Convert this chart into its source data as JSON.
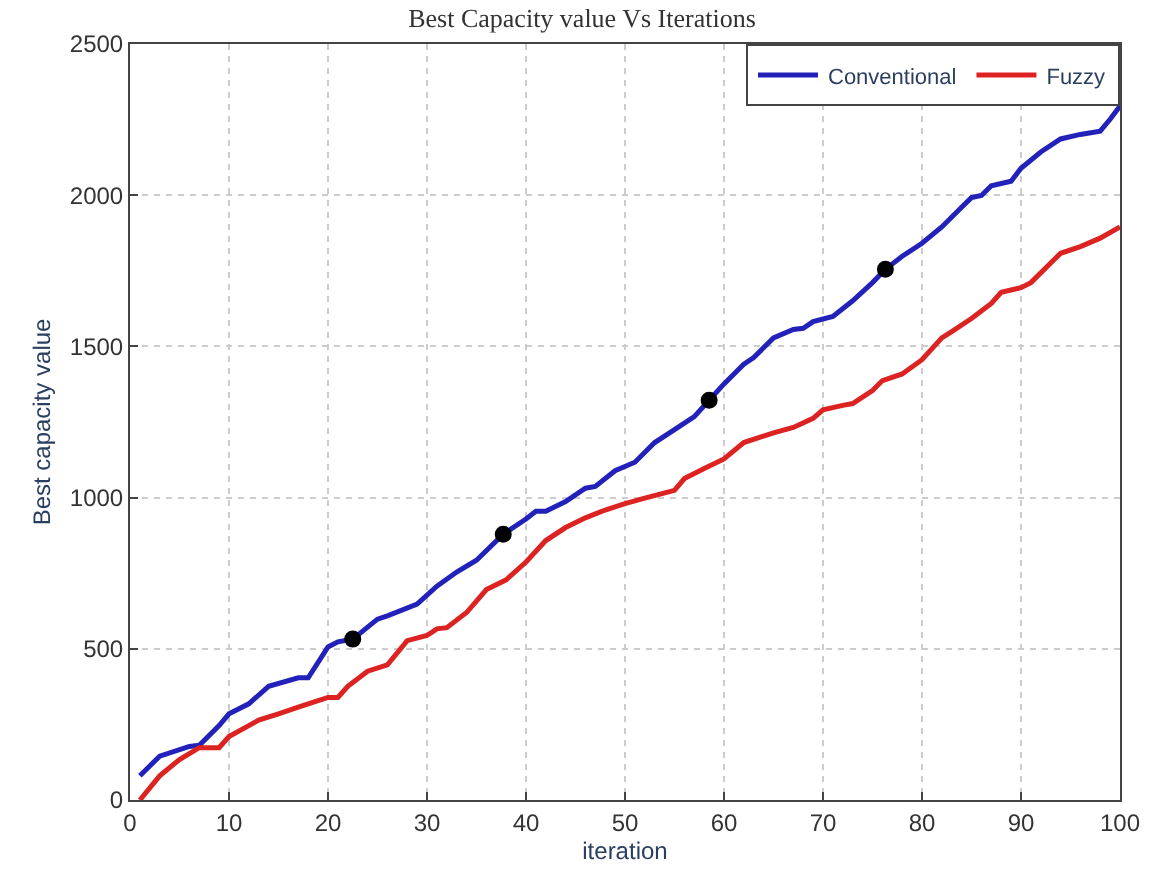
{
  "chart_data": {
    "type": "line",
    "title": "Best Capacity value Vs Iterations",
    "xlabel": "iteration",
    "ylabel": "Best capacity value",
    "xlim": [
      0,
      100
    ],
    "xticks": [
      0,
      10,
      20,
      30,
      40,
      50,
      60,
      70,
      80,
      90,
      100
    ],
    "ylim": [
      0,
      2500
    ],
    "yticks": [
      0,
      500,
      1000,
      1500,
      2000,
      2500
    ],
    "grid": true,
    "legend": "top right",
    "series": [
      {
        "name": "Conventional",
        "color": "#2222bb",
        "x": [
          1,
          3,
          6,
          7,
          9,
          10,
          12,
          14,
          17,
          18,
          20,
          21,
          22.5,
          25,
          26,
          29,
          31,
          33,
          35,
          37.7,
          40,
          41,
          42,
          44,
          46,
          47,
          49,
          51,
          53,
          55,
          57,
          58.5,
          60,
          62,
          63,
          65,
          67,
          68,
          69,
          71,
          73,
          75,
          76.3,
          78,
          80,
          82,
          84,
          85,
          86,
          87,
          89,
          90,
          92,
          94,
          96,
          98,
          99,
          100
        ],
        "values": [
          80,
          145,
          177,
          181,
          246,
          285,
          318,
          376,
          404,
          404,
          506,
          523,
          532,
          598,
          609,
          648,
          707,
          754,
          793,
          879,
          929,
          955,
          955,
          987,
          1031,
          1037,
          1089,
          1117,
          1182,
          1225,
          1268,
          1322,
          1376,
          1441,
          1463,
          1528,
          1556,
          1560,
          1582,
          1599,
          1651,
          1711,
          1755,
          1798,
          1841,
          1895,
          1960,
          1992,
          1999,
          2031,
          2046,
          2089,
          2143,
          2186,
          2201,
          2212,
          2251,
          2295
        ]
      },
      {
        "name": "Fuzzy",
        "color": "#dd2222",
        "x": [
          1,
          3,
          5,
          7,
          9,
          10,
          12,
          13,
          15,
          17,
          18,
          20,
          21,
          22,
          24,
          26,
          28,
          30,
          31,
          32,
          34,
          36,
          38,
          40,
          42,
          44,
          46,
          48,
          50,
          52,
          55,
          56,
          58,
          60,
          62,
          65,
          67,
          69,
          70,
          72,
          73,
          75,
          76,
          78,
          80,
          82,
          83,
          85,
          87,
          88,
          90,
          91,
          93,
          94,
          96,
          98,
          100
        ],
        "values": [
          0,
          80,
          134,
          173,
          173,
          210,
          246,
          264,
          285,
          307,
          318,
          339,
          339,
          376,
          426,
          447,
          527,
          544,
          566,
          570,
          620,
          696,
          728,
          787,
          858,
          901,
          933,
          959,
          980,
          998,
          1024,
          1063,
          1096,
          1128,
          1182,
          1214,
          1232,
          1262,
          1290,
          1305,
          1311,
          1354,
          1387,
          1409,
          1456,
          1528,
          1549,
          1592,
          1642,
          1679,
          1694,
          1711,
          1776,
          1808,
          1830,
          1858,
          1895
        ]
      },
      {
        "type": "scatter",
        "color": "#000000",
        "x": [
          22.5,
          37.7,
          58.5,
          76.3
        ],
        "values": [
          532,
          879,
          1322,
          1755
        ]
      }
    ]
  }
}
